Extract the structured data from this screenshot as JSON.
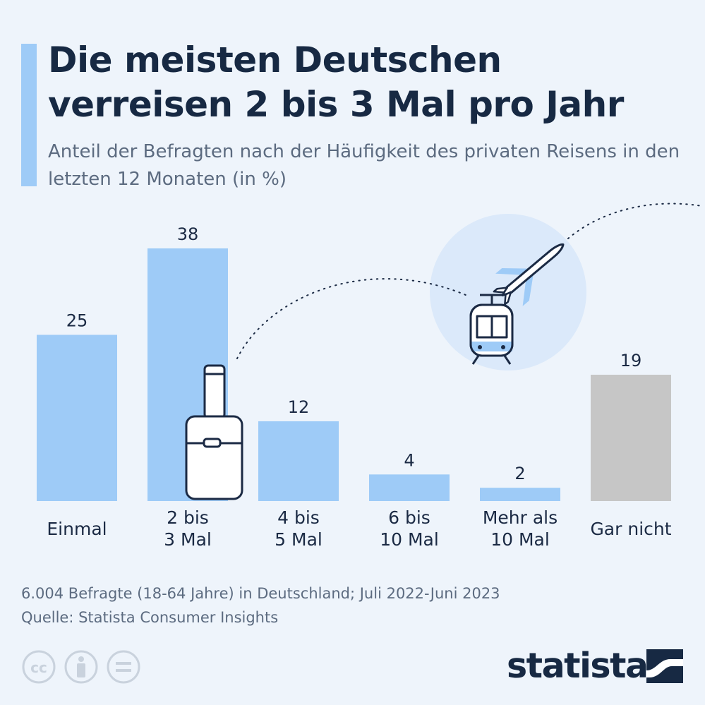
{
  "header": {
    "title": "Die meisten Deutschen verreisen 2 bis 3 Mal pro Jahr",
    "subtitle": "Anteil der Befragten nach der Häufigkeit des privaten Reisens in den letzten 12 Monaten (in %)"
  },
  "chart_data": {
    "type": "bar",
    "categories": [
      "Einmal",
      "2 bis\n3 Mal",
      "4 bis\n5 Mal",
      "6 bis\n10 Mal",
      "Mehr als\n10 Mal",
      "Gar nicht"
    ],
    "values": [
      25,
      38,
      12,
      4,
      2,
      19
    ],
    "bar_colors": [
      "#9ecbf7",
      "#9ecbf7",
      "#9ecbf7",
      "#9ecbf7",
      "#9ecbf7",
      "#c6c6c6"
    ],
    "data_labels": true,
    "grid": false,
    "ylim": [
      0,
      38
    ],
    "title": "",
    "xlabel": "",
    "ylabel": ""
  },
  "decorations": {
    "icons": [
      "suitcase-icon",
      "train-icon",
      "airplane-icon"
    ],
    "circle_color": "#dbe9fa"
  },
  "footer": {
    "note": "6.004 Befragte (18-64 Jahre) in Deutschland; Juli 2022-Juni 2023",
    "source": "Quelle: Statista Consumer Insights",
    "license_icons": [
      "cc-icon",
      "by-icon",
      "nd-icon"
    ],
    "brand": "statista"
  },
  "colors": {
    "background": "#eef4fb",
    "title": "#172943",
    "accent": "#9ecbf7",
    "muted": "#5c6b80"
  }
}
